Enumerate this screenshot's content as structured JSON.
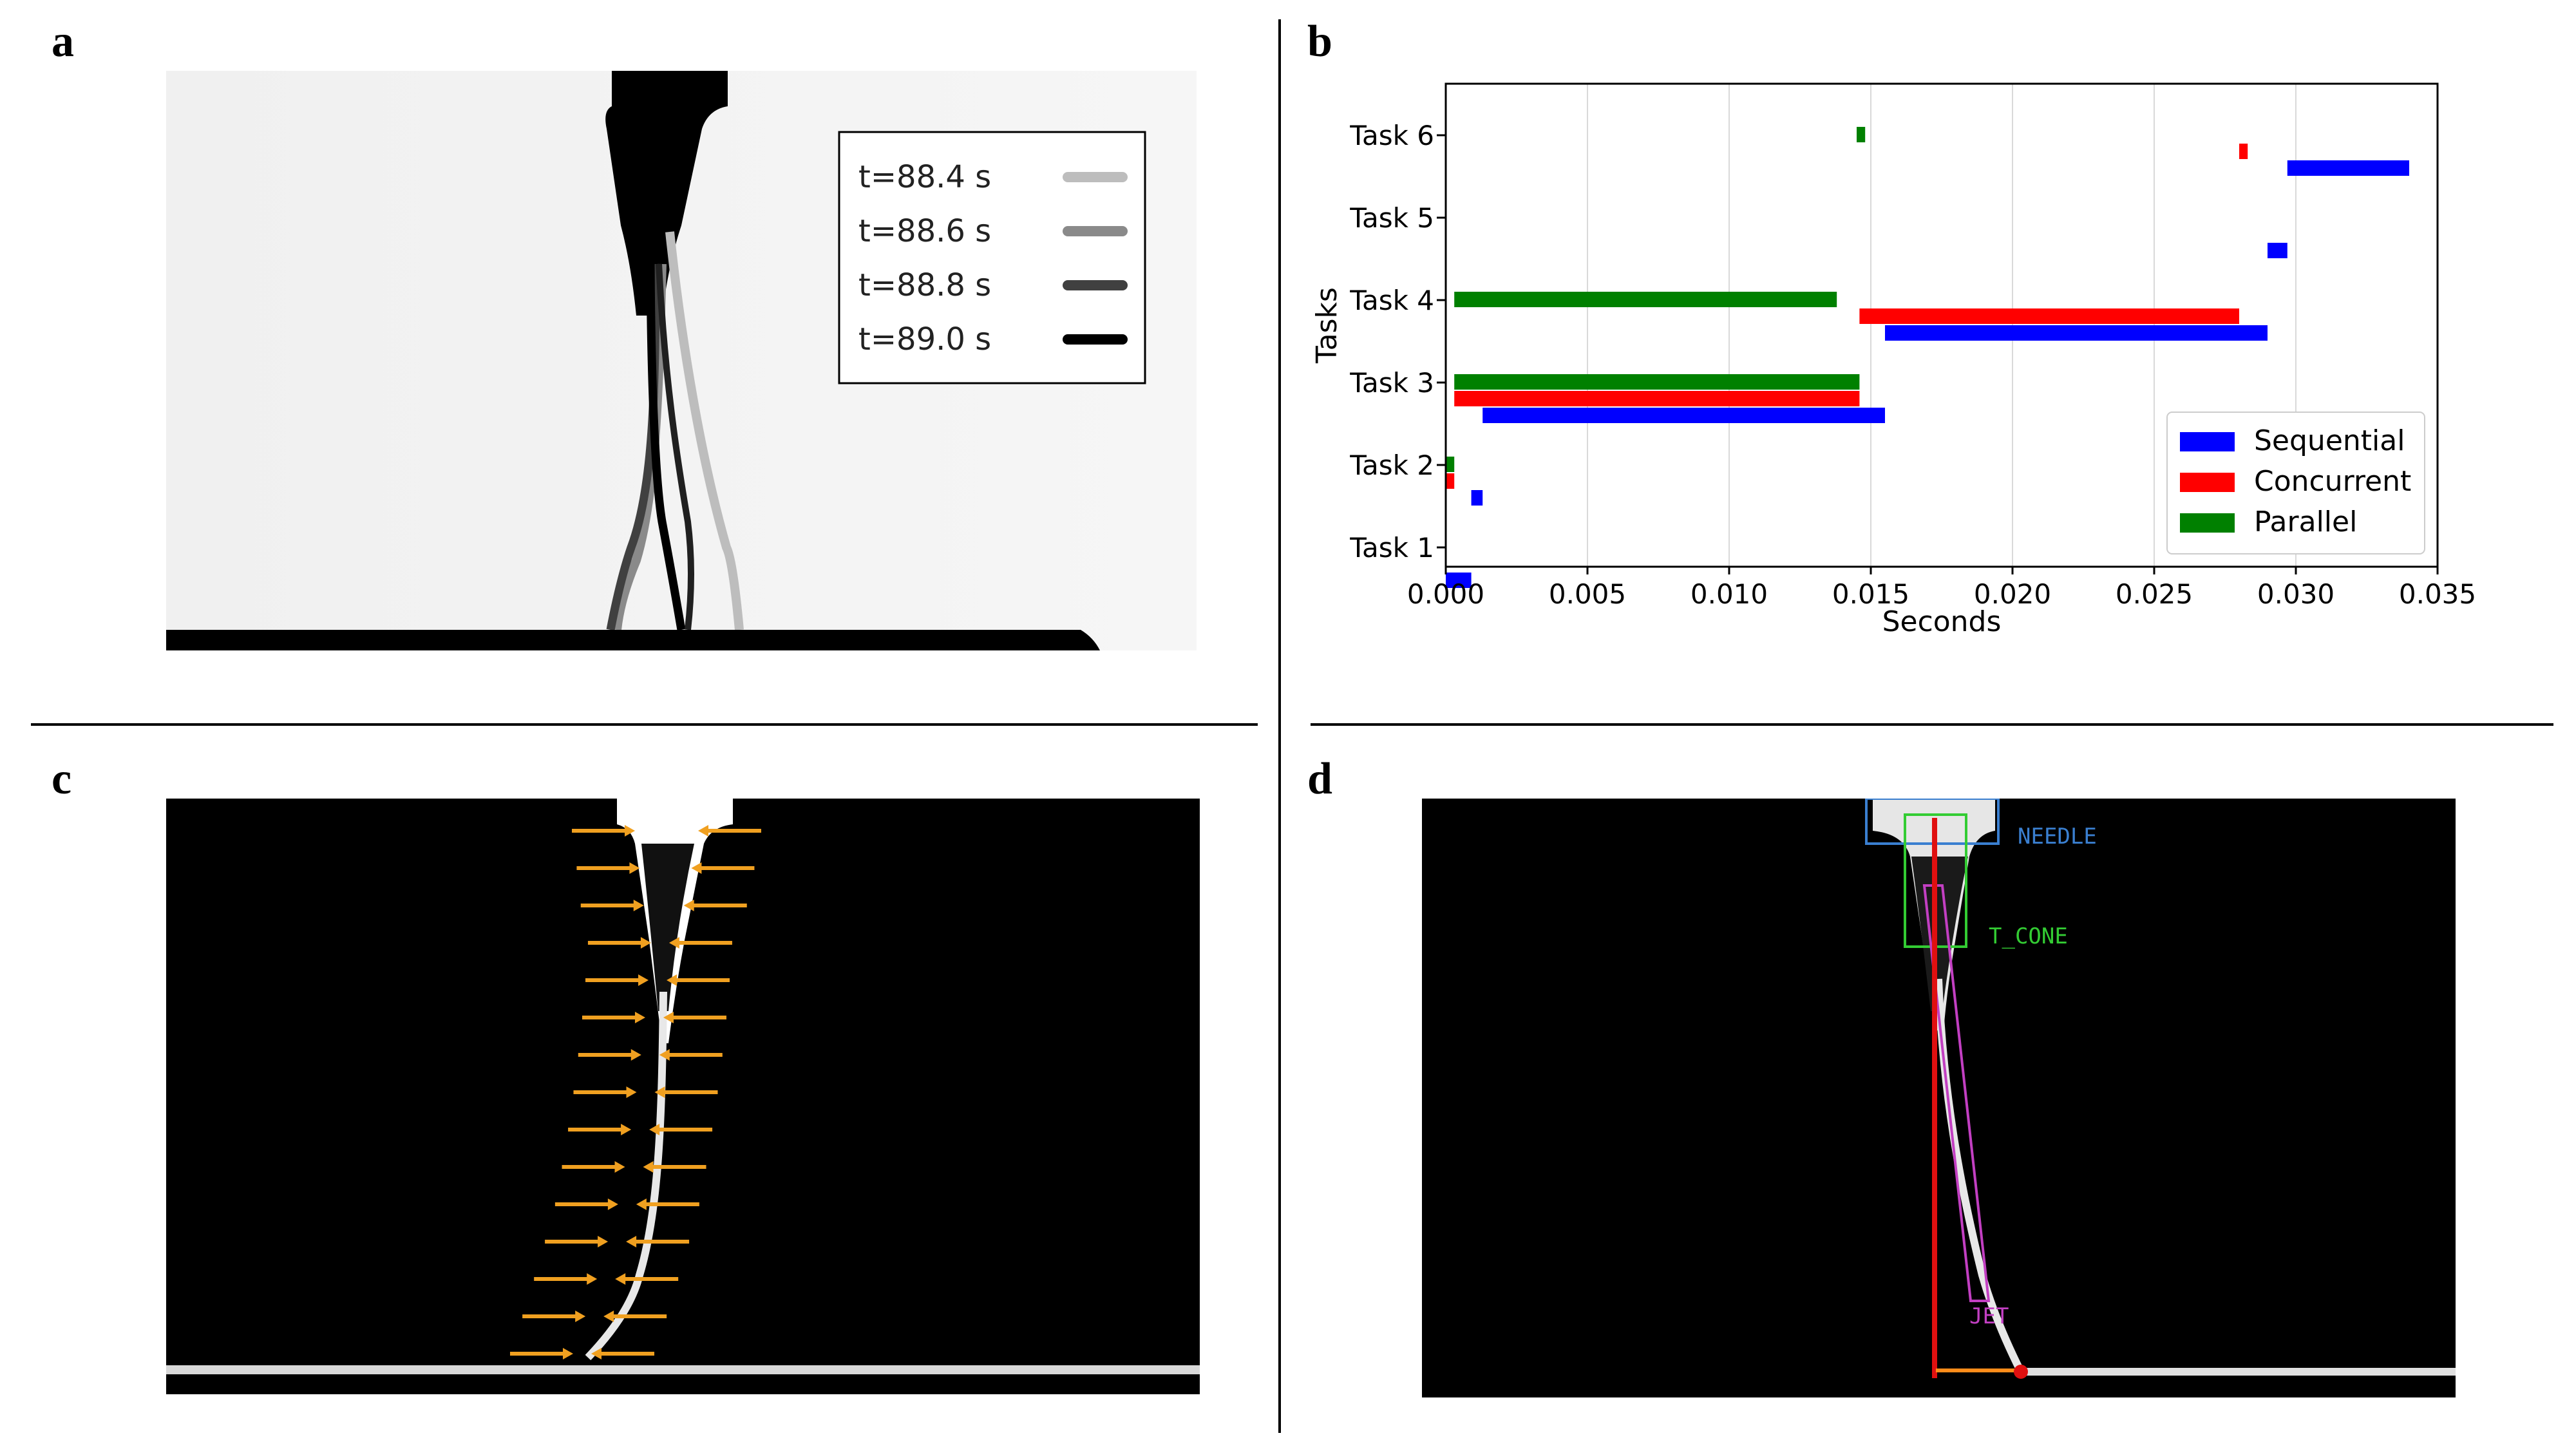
{
  "panels": {
    "a": {
      "letter": "a",
      "legend": [
        {
          "label": "t=88.4  s",
          "color": "#bdbdbd"
        },
        {
          "label": "t=88.6  s",
          "color": "#8a8a8a"
        },
        {
          "label": "t=88.8  s",
          "color": "#404040"
        },
        {
          "label": "t=89.0  s",
          "color": "#000000"
        }
      ]
    },
    "b": {
      "letter": "b"
    },
    "c": {
      "letter": "c"
    },
    "d": {
      "letter": "d",
      "labels": {
        "needle": "NEEDLE",
        "t_cone": "T_CONE",
        "jet": "JET"
      },
      "colors": {
        "needle": "#3a7fd0",
        "t_cone": "#33cc33",
        "jet": "#c23fc2",
        "centerline": "#e01010",
        "marker": "#ff8c1a"
      }
    }
  },
  "chart_data": {
    "type": "bar",
    "orientation": "horizontal",
    "xlabel": "Seconds",
    "ylabel": "Tasks",
    "xlim": [
      0.0,
      0.035
    ],
    "xticks": [
      "0.000",
      "0.005",
      "0.010",
      "0.015",
      "0.020",
      "0.025",
      "0.030",
      "0.035"
    ],
    "categories": [
      "Task 1",
      "Task 2",
      "Task 3",
      "Task 4",
      "Task 5",
      "Task 6"
    ],
    "grid": "vertical",
    "legend_position": "bottom-right",
    "series": [
      {
        "name": "Sequential",
        "color": "#0000ff",
        "intervals": [
          {
            "task": "Task 1",
            "start": 0.0,
            "end": 0.0009
          },
          {
            "task": "Task 2",
            "start": 0.0009,
            "end": 0.0013
          },
          {
            "task": "Task 3",
            "start": 0.0013,
            "end": 0.0155
          },
          {
            "task": "Task 4",
            "start": 0.0155,
            "end": 0.029
          },
          {
            "task": "Task 5",
            "start": 0.029,
            "end": 0.0297
          },
          {
            "task": "Task 6",
            "start": 0.0297,
            "end": 0.034
          }
        ]
      },
      {
        "name": "Concurrent",
        "color": "#ff0000",
        "intervals": [
          {
            "task": "Task 2",
            "start": 0.0,
            "end": 0.0003
          },
          {
            "task": "Task 3",
            "start": 0.0003,
            "end": 0.0146
          },
          {
            "task": "Task 4",
            "start": 0.0146,
            "end": 0.028
          },
          {
            "task": "Task 6",
            "start": 0.028,
            "end": 0.0283
          }
        ]
      },
      {
        "name": "Parallel",
        "color": "#008000",
        "intervals": [
          {
            "task": "Task 2",
            "start": 0.0,
            "end": 0.0003
          },
          {
            "task": "Task 3",
            "start": 0.0003,
            "end": 0.0146
          },
          {
            "task": "Task 4",
            "start": 0.0003,
            "end": 0.0138
          },
          {
            "task": "Task 6",
            "start": 0.0145,
            "end": 0.0148
          }
        ]
      }
    ]
  }
}
